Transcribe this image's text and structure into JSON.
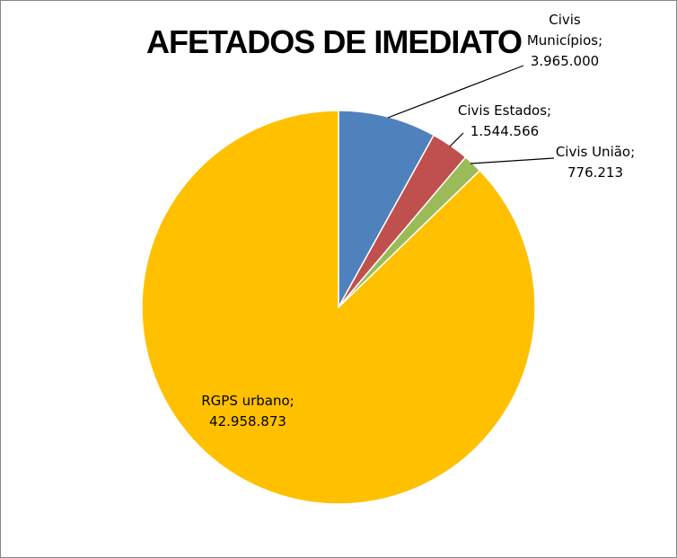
{
  "chart_data": {
    "type": "pie",
    "title": "AFETADOS DE IMEDIATO",
    "slices": [
      {
        "name": "Civis Municípios",
        "value": 3965000,
        "value_label": "3.965.000",
        "color": "#4F81BD"
      },
      {
        "name": "Civis Estados",
        "value": 1544566,
        "value_label": "1.544.566",
        "color": "#C0504D"
      },
      {
        "name": "Civis União",
        "value": 776213,
        "value_label": "776.213",
        "color": "#9BBB59"
      },
      {
        "name": "RGPS urbano",
        "value": 42958873,
        "value_label": "42.958.873",
        "color": "#FFC000"
      }
    ],
    "legend": "none",
    "data_labels": "category and value, outside with leader lines (except largest slice)"
  }
}
